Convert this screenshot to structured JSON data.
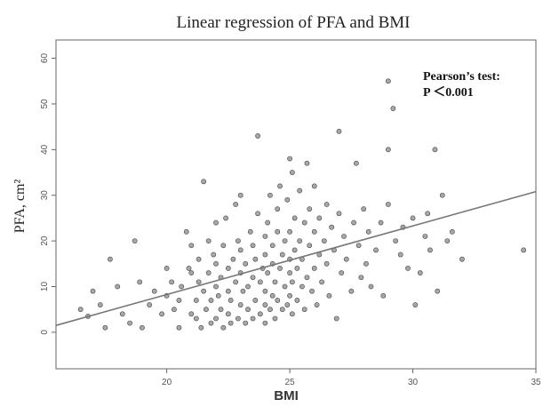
{
  "chart_data": {
    "type": "scatter",
    "title": "Linear regression of PFA and BMI",
    "xlabel": "BMI",
    "ylabel": "PFA, cm²",
    "xlim": [
      15.5,
      35
    ],
    "ylim": [
      -8,
      64
    ],
    "xticks": [
      20,
      25,
      30,
      35
    ],
    "yticks": [
      0,
      10,
      20,
      30,
      40,
      50,
      60
    ],
    "grid": false,
    "annotation": [
      "Pearson’s test:",
      "P ＜0.001"
    ],
    "regression_line": {
      "x": [
        15.5,
        35
      ],
      "y": [
        1.5,
        30.8
      ]
    },
    "points": [
      [
        16.5,
        5
      ],
      [
        16.8,
        3.5
      ],
      [
        17,
        9
      ],
      [
        17.3,
        6
      ],
      [
        17.5,
        1
      ],
      [
        17.7,
        16
      ],
      [
        18,
        10
      ],
      [
        18.2,
        4
      ],
      [
        18.5,
        2
      ],
      [
        18.7,
        20
      ],
      [
        18.9,
        11
      ],
      [
        19,
        1
      ],
      [
        19.3,
        6
      ],
      [
        19.5,
        9
      ],
      [
        19.8,
        4
      ],
      [
        20,
        8
      ],
      [
        20,
        14
      ],
      [
        20.2,
        11
      ],
      [
        20.3,
        5
      ],
      [
        20.5,
        7
      ],
      [
        20.5,
        1
      ],
      [
        20.6,
        10
      ],
      [
        20.8,
        22
      ],
      [
        20.9,
        14
      ],
      [
        21,
        4
      ],
      [
        21,
        13
      ],
      [
        21,
        19
      ],
      [
        21.2,
        3
      ],
      [
        21.2,
        7
      ],
      [
        21.3,
        11
      ],
      [
        21.3,
        16
      ],
      [
        21.4,
        1
      ],
      [
        21.5,
        9
      ],
      [
        21.5,
        33
      ],
      [
        21.6,
        5
      ],
      [
        21.7,
        13
      ],
      [
        21.7,
        20
      ],
      [
        21.8,
        2
      ],
      [
        21.8,
        7
      ],
      [
        21.9,
        17
      ],
      [
        22,
        3
      ],
      [
        22,
        10
      ],
      [
        22,
        24
      ],
      [
        22,
        15
      ],
      [
        22.1,
        8
      ],
      [
        22.2,
        5
      ],
      [
        22.2,
        12
      ],
      [
        22.3,
        1
      ],
      [
        22.3,
        19
      ],
      [
        22.4,
        25
      ],
      [
        22.5,
        4
      ],
      [
        22.5,
        9
      ],
      [
        22.5,
        14
      ],
      [
        22.6,
        2
      ],
      [
        22.6,
        7
      ],
      [
        22.7,
        16
      ],
      [
        22.8,
        11
      ],
      [
        22.8,
        28
      ],
      [
        22.9,
        3
      ],
      [
        22.9,
        20
      ],
      [
        23,
        6
      ],
      [
        23,
        13
      ],
      [
        23,
        18
      ],
      [
        23,
        30
      ],
      [
        23.1,
        9
      ],
      [
        23.2,
        2
      ],
      [
        23.2,
        15
      ],
      [
        23.3,
        5
      ],
      [
        23.3,
        10
      ],
      [
        23.4,
        22
      ],
      [
        23.5,
        3
      ],
      [
        23.5,
        12
      ],
      [
        23.5,
        19
      ],
      [
        23.6,
        7
      ],
      [
        23.6,
        16
      ],
      [
        23.7,
        43
      ],
      [
        23.7,
        26
      ],
      [
        23.8,
        4
      ],
      [
        23.8,
        11
      ],
      [
        23.9,
        14
      ],
      [
        24,
        2
      ],
      [
        24,
        6
      ],
      [
        24,
        9
      ],
      [
        24,
        17
      ],
      [
        24,
        21
      ],
      [
        24.1,
        13
      ],
      [
        24.1,
        24
      ],
      [
        24.2,
        5
      ],
      [
        24.2,
        30
      ],
      [
        24.3,
        8
      ],
      [
        24.3,
        15
      ],
      [
        24.3,
        19
      ],
      [
        24.4,
        3
      ],
      [
        24.4,
        11
      ],
      [
        24.5,
        22
      ],
      [
        24.5,
        27
      ],
      [
        24.5,
        7
      ],
      [
        24.6,
        14
      ],
      [
        24.6,
        32
      ],
      [
        24.7,
        5
      ],
      [
        24.7,
        17
      ],
      [
        24.8,
        10
      ],
      [
        24.8,
        20
      ],
      [
        24.9,
        6
      ],
      [
        24.9,
        29
      ],
      [
        25,
        8
      ],
      [
        25,
        13
      ],
      [
        25,
        16
      ],
      [
        25,
        22
      ],
      [
        25,
        38
      ],
      [
        25.1,
        4
      ],
      [
        25.1,
        11
      ],
      [
        25.1,
        35
      ],
      [
        25.2,
        18
      ],
      [
        25.2,
        25
      ],
      [
        25.3,
        7
      ],
      [
        25.3,
        14
      ],
      [
        25.4,
        20
      ],
      [
        25.4,
        31
      ],
      [
        25.5,
        10
      ],
      [
        25.5,
        16
      ],
      [
        25.6,
        5
      ],
      [
        25.6,
        24
      ],
      [
        25.7,
        12
      ],
      [
        25.7,
        37
      ],
      [
        25.8,
        19
      ],
      [
        25.8,
        27
      ],
      [
        25.9,
        9
      ],
      [
        26,
        14
      ],
      [
        26,
        22
      ],
      [
        26,
        32
      ],
      [
        26.1,
        6
      ],
      [
        26.2,
        17
      ],
      [
        26.2,
        25
      ],
      [
        26.3,
        11
      ],
      [
        26.4,
        20
      ],
      [
        26.5,
        15
      ],
      [
        26.5,
        28
      ],
      [
        26.6,
        8
      ],
      [
        26.7,
        23
      ],
      [
        26.8,
        18
      ],
      [
        26.9,
        3
      ],
      [
        27,
        26
      ],
      [
        27,
        44
      ],
      [
        27.1,
        13
      ],
      [
        27.2,
        21
      ],
      [
        27.3,
        16
      ],
      [
        27.5,
        9
      ],
      [
        27.6,
        24
      ],
      [
        27.7,
        37
      ],
      [
        27.8,
        19
      ],
      [
        27.9,
        12
      ],
      [
        28,
        27
      ],
      [
        28.1,
        15
      ],
      [
        28.2,
        22
      ],
      [
        28.3,
        10
      ],
      [
        28.5,
        18
      ],
      [
        28.7,
        24
      ],
      [
        28.8,
        8
      ],
      [
        29,
        28
      ],
      [
        29,
        55
      ],
      [
        29,
        40
      ],
      [
        29.2,
        49
      ],
      [
        29.3,
        20
      ],
      [
        29.5,
        17
      ],
      [
        29.6,
        23
      ],
      [
        29.8,
        14
      ],
      [
        30,
        25
      ],
      [
        30.1,
        6
      ],
      [
        30.3,
        13
      ],
      [
        30.5,
        21
      ],
      [
        30.6,
        26
      ],
      [
        30.7,
        18
      ],
      [
        30.9,
        40
      ],
      [
        31,
        9
      ],
      [
        31.2,
        30
      ],
      [
        31.4,
        20
      ],
      [
        31.6,
        22
      ],
      [
        32,
        16
      ],
      [
        34.5,
        18
      ]
    ]
  }
}
